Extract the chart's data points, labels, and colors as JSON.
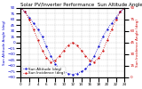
{
  "title": "Solar PV/Inverter Performance  Sun Altitude Angle & Sun Incidence Angle on PV Panels",
  "legend_line1": "Sun Altitude (deg)",
  "legend_line2": "Sun Incidence (deg)",
  "ylabel_left": "Sun Altitude Angle (deg)",
  "ylabel_right": "Sun Incidence Angle (deg)",
  "blue_color": "#0000cc",
  "red_color": "#cc0000",
  "bg_color": "#ffffff",
  "grid_color": "#999999",
  "xlim": [
    0,
    24
  ],
  "ylim_left": [
    -90,
    90
  ],
  "ylim_right": [
    0,
    90
  ],
  "xticks": [
    0,
    2,
    4,
    6,
    8,
    10,
    12,
    14,
    16,
    18,
    20,
    22,
    24
  ],
  "yticks_left": [
    -90,
    -75,
    -60,
    -45,
    -30,
    -15,
    0,
    15,
    30,
    45,
    60,
    75,
    90
  ],
  "yticks_right": [
    0,
    15,
    30,
    45,
    60,
    75,
    90
  ],
  "x": [
    0,
    1,
    2,
    3,
    4,
    5,
    6,
    7,
    8,
    9,
    10,
    11,
    12,
    13,
    14,
    15,
    16,
    17,
    18,
    19,
    20,
    21,
    22,
    23,
    24
  ],
  "blue_y": [
    90,
    80,
    65,
    50,
    35,
    15,
    -10,
    -35,
    -55,
    -68,
    -75,
    -80,
    -82,
    -80,
    -75,
    -68,
    -55,
    -35,
    -10,
    15,
    35,
    50,
    65,
    80,
    90
  ],
  "red_y": [
    90,
    85,
    75,
    62,
    48,
    35,
    25,
    20,
    22,
    28,
    35,
    42,
    45,
    42,
    35,
    28,
    22,
    20,
    25,
    35,
    48,
    62,
    75,
    85,
    90
  ],
  "title_fontsize": 4.0,
  "label_fontsize": 3.0,
  "tick_fontsize": 3.0,
  "legend_fontsize": 3.0,
  "linewidth": 0.6,
  "markersize": 1.2
}
